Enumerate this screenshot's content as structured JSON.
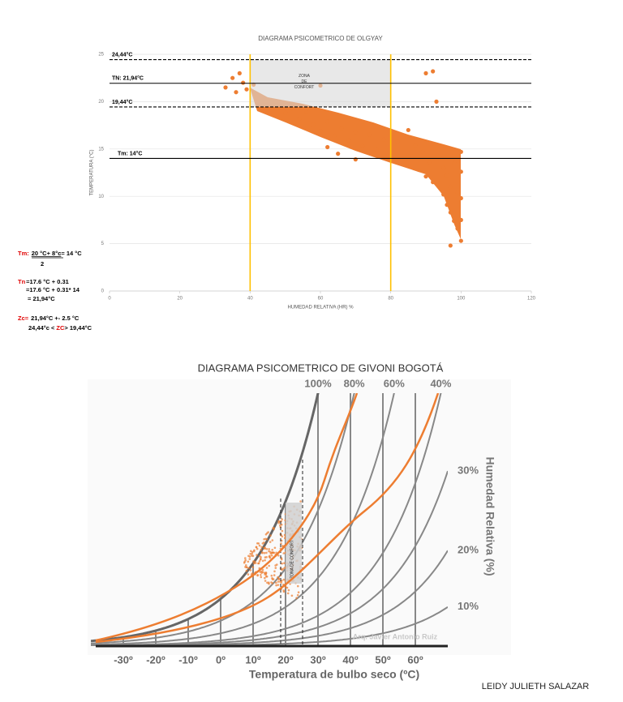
{
  "chart_data": [
    {
      "type": "scatter",
      "title": "DIAGRAMA PSICOMETRICO DE OLGYAY",
      "x_label": "HUMEDAD RELATIVA (HR) %",
      "y_label": "TEMPERATURA (°C)",
      "xlim": [
        0,
        120
      ],
      "xticks": [
        0,
        20,
        40,
        60,
        80,
        100,
        120
      ],
      "ylim": [
        0,
        25
      ],
      "yticks": [
        0,
        5,
        10,
        15,
        20,
        25
      ],
      "grid": true,
      "color": "#ed7d31",
      "x": [
        33,
        35,
        36,
        37,
        38,
        39,
        41,
        42,
        44,
        46,
        48,
        50,
        52,
        54,
        56,
        58,
        60,
        60,
        62,
        64,
        66,
        68,
        70,
        72,
        74,
        76,
        78,
        80,
        82,
        84,
        85,
        86,
        87,
        88,
        89,
        90,
        90,
        91,
        92,
        92,
        93,
        94,
        95,
        95,
        96,
        96,
        97,
        97,
        98,
        98,
        99,
        99,
        100,
        100,
        100,
        100,
        100,
        97,
        62,
        70,
        65
      ],
      "values": [
        21.5,
        22.5,
        21,
        23,
        22,
        21.3,
        21.8,
        20.5,
        20.2,
        19.5,
        19.8,
        18.8,
        19.3,
        18.2,
        18.9,
        17.6,
        21.7,
        16.9,
        17.9,
        16.4,
        17.2,
        15.9,
        16.8,
        15.3,
        16.5,
        14.9,
        16,
        14.6,
        15.8,
        13.9,
        17,
        14.2,
        15.4,
        12.8,
        14.7,
        23,
        12.1,
        13.6,
        23.2,
        11.5,
        20,
        14.1,
        10.2,
        13,
        9.1,
        12.2,
        8.3,
        11,
        7.4,
        13.5,
        6.6,
        10.4,
        5.3,
        7.5,
        9.8,
        12.6,
        14.7,
        4.8,
        15.2,
        13.9,
        14.5
      ],
      "hlines": [
        {
          "value": 24.44,
          "label": "24,44°C",
          "style": "dashed"
        },
        {
          "value": 21.94,
          "label": "TN: 21,94°C",
          "style": "solid"
        },
        {
          "value": 19.44,
          "label": "19,44°C",
          "style": "dashed"
        },
        {
          "value": 14,
          "label": "Tm: 14°C",
          "style": "solid"
        }
      ],
      "vlines": [
        {
          "value": 40,
          "color": "#ffc000"
        },
        {
          "value": 80,
          "color": "#ffc000"
        }
      ],
      "zone": {
        "label": [
          "ZONA",
          "DE",
          "CONFORT"
        ],
        "x": [
          40,
          80
        ],
        "y": [
          19.44,
          24.44
        ]
      }
    },
    {
      "type": "psychrometric",
      "title": "DIAGRAMA PSICOMETRICO DE GIVONI BOGOTÁ",
      "x_label": "Temperatura de bulbo seco (ºC)",
      "y_label": "Humedad Relativa (%)",
      "xlim": [
        -40,
        70
      ],
      "xticks": [
        {
          "value": -30,
          "label": "-30º"
        },
        {
          "value": -20,
          "label": "-20º"
        },
        {
          "value": -10,
          "label": "-10º"
        },
        {
          "value": 0,
          "label": "0º"
        },
        {
          "value": 10,
          "label": "10º"
        },
        {
          "value": 20,
          "label": "20º"
        },
        {
          "value": 30,
          "label": "30º"
        },
        {
          "value": 40,
          "label": "40º"
        },
        {
          "value": 50,
          "label": "50º"
        },
        {
          "value": 60,
          "label": "60º"
        }
      ],
      "rh_curves": [
        {
          "value": 100,
          "label": "100%"
        },
        {
          "value": 80,
          "label": "80%"
        },
        {
          "value": 60,
          "label": "60%"
        },
        {
          "value": 40,
          "label": "40%"
        },
        {
          "value": 30,
          "label": "30%"
        },
        {
          "value": 20,
          "label": "20%"
        },
        {
          "value": 10,
          "label": "10%"
        }
      ],
      "zone_label": "ZONA DE CONFORT",
      "credit": "Arq. Javier Antonio Ruiz"
    }
  ],
  "notes": {
    "tm": {
      "label": "Tm:",
      "numerator": "20 °C+ 8°c",
      "result": "= 14 °C",
      "denominator": "2"
    },
    "tn": {
      "label": "Tn",
      "lines": [
        "=17.6 °C + 0.31",
        "=17.6 °C + 0.31* 14",
        "= 21,94°C"
      ]
    },
    "zc": {
      "label": "Zc=",
      "line": "21,94°C +- 2.5 °C",
      "range_left": "24,44°c <",
      "range_mid": "ZC",
      "range_right": "> 19,44°C"
    }
  },
  "author": "LEIDY JULIETH SALAZAR"
}
